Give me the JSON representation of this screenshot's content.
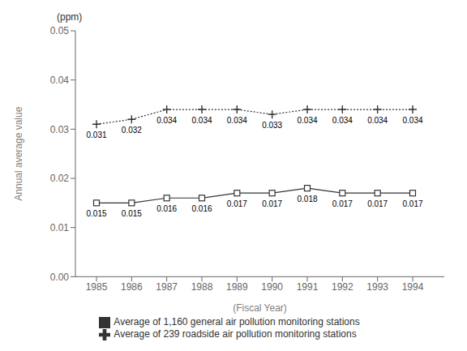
{
  "chart_data": {
    "type": "line",
    "x": [
      1985,
      1986,
      1987,
      1988,
      1989,
      1990,
      1991,
      1992,
      1993,
      1994
    ],
    "series": [
      {
        "name": "Average of 1,160 general air pollution monitoring stations",
        "color": "#333333",
        "marker": "square",
        "line_style": "solid",
        "values": [
          0.015,
          0.015,
          0.016,
          0.016,
          0.017,
          0.017,
          0.018,
          0.017,
          0.017,
          0.017
        ]
      },
      {
        "name": "Average of 239 roadside air pollution monitoring stations",
        "color": "#333333",
        "marker": "plus",
        "line_style": "dotted",
        "values": [
          0.031,
          0.032,
          0.034,
          0.034,
          0.034,
          0.033,
          0.034,
          0.034,
          0.034,
          0.034
        ]
      }
    ],
    "x_label": "(Fiscal Year)",
    "y_label": "Annual average value",
    "annotations": [
      "(ppm)"
    ],
    "xlim": [
      1984.4,
      1994.9
    ],
    "xticks": [
      1985,
      1986,
      1987,
      1988,
      1989,
      1990,
      1991,
      1992,
      1993,
      1994
    ],
    "ylim": [
      0.0,
      0.05
    ],
    "yticks": [
      {
        "value": 0.0,
        "label": "0.00"
      },
      {
        "value": 0.01,
        "label": "0.01"
      },
      {
        "value": 0.02,
        "label": "0.02"
      },
      {
        "value": 0.03,
        "label": "0.03"
      },
      {
        "value": 0.04,
        "label": "0.04"
      },
      {
        "value": 0.05,
        "label": "0.05"
      }
    ],
    "grid": false,
    "legend": "bottom",
    "data_labels": true
  }
}
